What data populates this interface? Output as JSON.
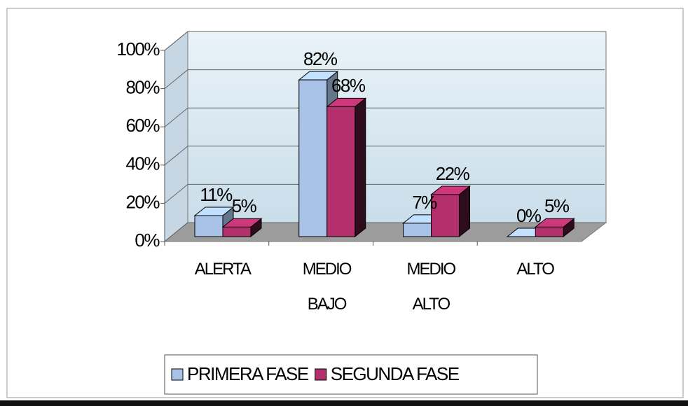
{
  "chart_data": {
    "type": "bar3d",
    "categories": [
      "ALERTA",
      "MEDIO BAJO",
      "MEDIO ALTO",
      "ALTO"
    ],
    "series": [
      {
        "name": "PRIMERA FASE",
        "color": "#a9c3e8",
        "values": [
          11,
          82,
          7,
          0
        ],
        "value_labels": [
          "11%",
          "82%",
          "7%",
          "0%"
        ]
      },
      {
        "name": "SEGUNDA FASE",
        "color": "#b4306c",
        "values": [
          5,
          68,
          22,
          5
        ],
        "value_labels": [
          "5%",
          "68%",
          "22%",
          "5%"
        ]
      }
    ],
    "ylim": [
      0,
      100
    ],
    "yticks": [
      {
        "value": 0,
        "label": "0%"
      },
      {
        "value": 20,
        "label": "20%"
      },
      {
        "value": 40,
        "label": "40%"
      },
      {
        "value": 60,
        "label": "60%"
      },
      {
        "value": 80,
        "label": "80%"
      },
      {
        "value": 100,
        "label": "100%"
      }
    ],
    "grid": true,
    "legend": "bottom"
  }
}
